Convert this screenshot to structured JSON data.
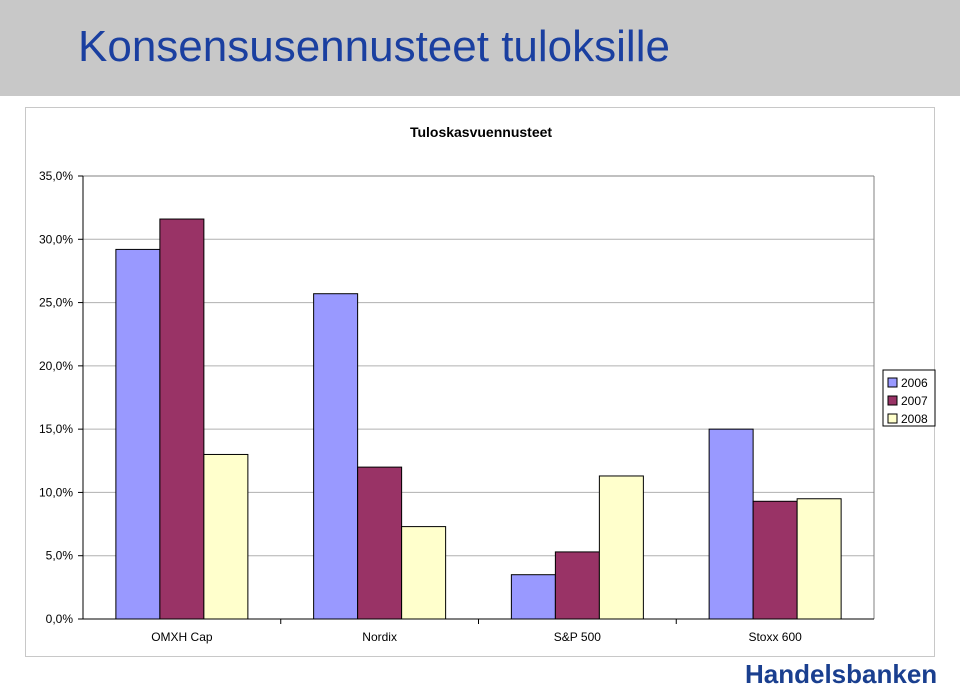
{
  "header": {
    "title": "Konsensusennusteet tuloksille"
  },
  "brand": {
    "name": "Handelsbanken"
  },
  "chart_data": {
    "type": "bar",
    "title": "Tuloskasvuennusteet",
    "categories": [
      "OMXH Cap",
      "Nordix",
      "S&P 500",
      "Stoxx 600"
    ],
    "series": [
      {
        "name": "2006",
        "color": "#9999ff",
        "values": [
          29.2,
          25.7,
          3.5,
          15.0
        ]
      },
      {
        "name": "2007",
        "color": "#993366",
        "values": [
          31.6,
          12.0,
          5.3,
          9.3
        ]
      },
      {
        "name": "2008",
        "color": "#ffffcc",
        "values": [
          13.0,
          7.3,
          11.3,
          9.5
        ]
      }
    ],
    "ylim": [
      0,
      35
    ],
    "yticks": [
      "0,0%",
      "5,0%",
      "10,0%",
      "15,0%",
      "20,0%",
      "25,0%",
      "30,0%",
      "35,0%"
    ],
    "ytick_values": [
      0,
      5,
      10,
      15,
      20,
      25,
      30,
      35
    ],
    "plot_background": "#ffffff",
    "grid": true,
    "legend_position": "right"
  }
}
